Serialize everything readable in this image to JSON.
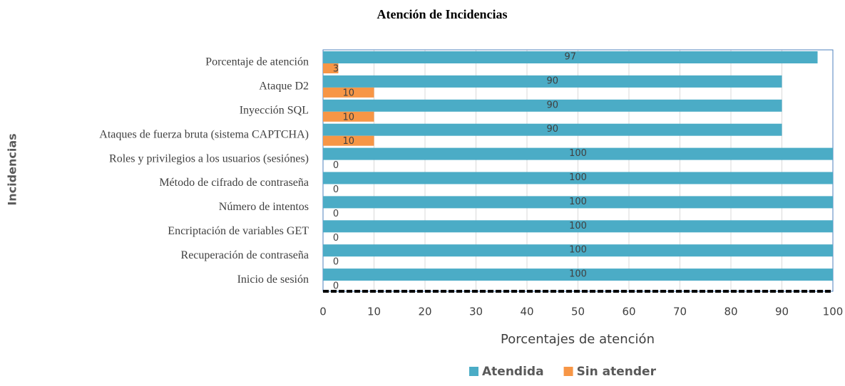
{
  "chart_data": {
    "type": "barh",
    "title": "Atención de Incidencias",
    "xlabel": "Porcentajes de  atención",
    "ylabel": "Incidencias",
    "categories": [
      "Porcentaje de atención",
      "Ataque D2",
      "Inyección SQL",
      "Ataques de fuerza bruta (sistema CAPTCHA)",
      "Roles y privilegios a los usuarios (sesiónes)",
      "Método de cifrado de contraseña",
      "Número de intentos",
      "Encriptación de variables GET",
      "Recuperación de contraseña",
      "Inicio de sesión"
    ],
    "series": [
      {
        "name": "Atendida",
        "color": "#4bacc6",
        "values": [
          97,
          90,
          90,
          90,
          100,
          100,
          100,
          100,
          100,
          100
        ]
      },
      {
        "name": "Sin atender",
        "color": "#f79646",
        "values": [
          3,
          10,
          10,
          10,
          0,
          0,
          0,
          0,
          0,
          0
        ]
      }
    ],
    "xlim": [
      0,
      100
    ],
    "xticks": [
      0,
      10,
      20,
      30,
      40,
      50,
      60,
      70,
      80,
      90,
      100
    ],
    "grid": true,
    "legend": "bottom"
  }
}
